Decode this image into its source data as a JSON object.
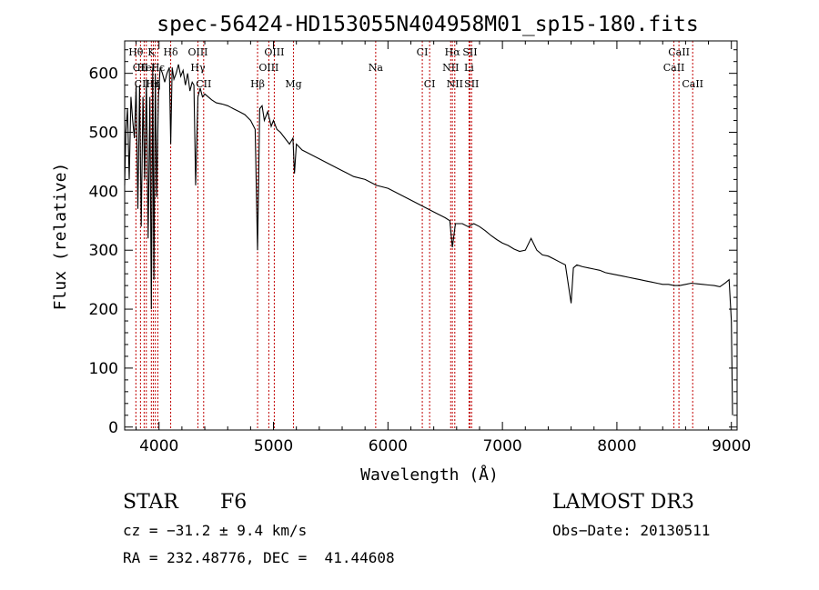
{
  "chart_data": {
    "type": "line",
    "title": "spec-56424-HD153055N404958M01_sp15-180.fits",
    "xlabel": "Wavelength (Å)",
    "ylabel": "Flux (relative)",
    "xlim": [
      3700,
      9050
    ],
    "ylim": [
      -5,
      655
    ],
    "xticks": [
      4000,
      5000,
      6000,
      7000,
      8000,
      9000
    ],
    "yticks": [
      0,
      100,
      200,
      300,
      400,
      500,
      600
    ],
    "series": [
      {
        "x": [
          3700,
          3710,
          3725,
          3740,
          3755,
          3770,
          3785,
          3800,
          3815,
          3830,
          3845,
          3860,
          3875,
          3890,
          3905,
          3920,
          3933,
          3945,
          3955,
          3968,
          3980,
          3995,
          4010,
          4030,
          4050,
          4070,
          4090,
          4102,
          4115,
          4130,
          4150,
          4170,
          4190,
          4210,
          4230,
          4250,
          4270,
          4290,
          4305,
          4320,
          4340,
          4360,
          4380,
          4400,
          4430,
          4460,
          4500,
          4550,
          4600,
          4650,
          4700,
          4750,
          4800,
          4840,
          4861,
          4880,
          4900,
          4920,
          4950,
          4980,
          5000,
          5030,
          5060,
          5100,
          5140,
          5170,
          5183,
          5200,
          5250,
          5300,
          5400,
          5500,
          5600,
          5700,
          5800,
          5900,
          6000,
          6100,
          6200,
          6300,
          6400,
          6500,
          6540,
          6563,
          6590,
          6650,
          6700,
          6750,
          6800,
          6850,
          6900,
          6950,
          7000,
          7050,
          7100,
          7150,
          7200,
          7250,
          7300,
          7350,
          7400,
          7450,
          7500,
          7550,
          7600,
          7620,
          7650,
          7700,
          7750,
          7800,
          7850,
          7900,
          7950,
          8000,
          8050,
          8100,
          8150,
          8200,
          8250,
          8300,
          8350,
          8400,
          8450,
          8500,
          8550,
          8600,
          8650,
          8700,
          8750,
          8800,
          8850,
          8900,
          8950,
          8980,
          9000,
          9010
        ],
        "y": [
          410,
          500,
          540,
          420,
          560,
          520,
          490,
          580,
          370,
          580,
          340,
          560,
          420,
          590,
          320,
          560,
          200,
          610,
          250,
          600,
          390,
          560,
          610,
          600,
          585,
          600,
          610,
          480,
          610,
          590,
          600,
          615,
          595,
          605,
          580,
          600,
          570,
          585,
          580,
          410,
          560,
          575,
          560,
          565,
          560,
          555,
          550,
          548,
          545,
          540,
          535,
          530,
          520,
          505,
          300,
          540,
          545,
          520,
          535,
          510,
          520,
          505,
          500,
          490,
          480,
          490,
          430,
          480,
          470,
          465,
          455,
          445,
          435,
          425,
          420,
          410,
          405,
          395,
          385,
          375,
          365,
          355,
          350,
          305,
          345,
          345,
          340,
          345,
          340,
          333,
          325,
          318,
          312,
          308,
          302,
          298,
          300,
          320,
          300,
          292,
          290,
          285,
          280,
          275,
          210,
          270,
          275,
          272,
          270,
          268,
          266,
          262,
          260,
          258,
          256,
          254,
          252,
          250,
          248,
          246,
          244,
          242,
          242,
          240,
          240,
          242,
          244,
          243,
          242,
          241,
          240,
          238,
          245,
          250,
          180,
          20
        ]
      }
    ],
    "spectral_lines": [
      {
        "label": "Hθ",
        "x": 3798,
        "row": 0
      },
      {
        "label": "CII",
        "x": 3838,
        "row": 1
      },
      {
        "label": "CIII",
        "x": 3870,
        "row": 2
      },
      {
        "label": "K",
        "x": 3933,
        "row": 0
      },
      {
        "label": "HeI",
        "x": 3889,
        "row": 1
      },
      {
        "label": "Hη",
        "x": 3950,
        "row": 2
      },
      {
        "label": "H",
        "x": 3968,
        "row": 2
      },
      {
        "label": "Hδ",
        "x": 4102,
        "row": 0
      },
      {
        "label": "Hε",
        "x": 3990,
        "row": 1
      },
      {
        "label": "OIII",
        "x": 4340,
        "row": 0
      },
      {
        "label": "Hγ",
        "x": 4340,
        "row": 1
      },
      {
        "label": "CII",
        "x": 4390,
        "row": 2
      },
      {
        "label": "Hβ",
        "x": 4861,
        "row": 2
      },
      {
        "label": "OIII",
        "x": 5007,
        "row": 0
      },
      {
        "label": "OIII",
        "x": 4959,
        "row": 1
      },
      {
        "label": "Mg",
        "x": 5175,
        "row": 2
      },
      {
        "label": "Na",
        "x": 5893,
        "row": 1
      },
      {
        "label": "CI",
        "x": 6300,
        "row": 0
      },
      {
        "label": "CI",
        "x": 6364,
        "row": 2
      },
      {
        "label": "Hα",
        "x": 6563,
        "row": 0
      },
      {
        "label": "NII",
        "x": 6548,
        "row": 1
      },
      {
        "label": "NII",
        "x": 6584,
        "row": 2
      },
      {
        "label": "SII",
        "x": 6717,
        "row": 0
      },
      {
        "label": "Li",
        "x": 6708,
        "row": 1
      },
      {
        "label": "SII",
        "x": 6731,
        "row": 2
      },
      {
        "label": "CaII",
        "x": 8542,
        "row": 0
      },
      {
        "label": "CaII",
        "x": 8498,
        "row": 1
      },
      {
        "label": "CaII",
        "x": 8662,
        "row": 2
      }
    ],
    "line_marker_color": "#c00000",
    "grid": false,
    "legend": "none"
  },
  "info": {
    "object_type": "STAR",
    "subclass": "F6",
    "survey": "LAMOST DR3",
    "cz": "cz = −31.2 ± 9.4 km/s",
    "obs_date": "Obs−Date: 20130511",
    "coords": "RA = 232.48776, DEC =  41.44608"
  }
}
